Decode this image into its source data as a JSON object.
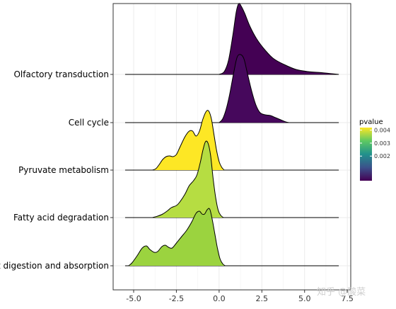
{
  "chart_data": {
    "type": "ridgeline",
    "x_ticks": [
      -5.0,
      -2.5,
      0.0,
      2.5,
      5.0,
      7.5
    ],
    "x_tick_labels": [
      "-5.0",
      "-2.5",
      "0.0",
      "2.5",
      "5.0",
      "7.5"
    ],
    "xlim": [
      -6.2,
      7.7
    ],
    "grid": true,
    "categories": [
      "Olfactory transduction",
      "Cell cycle",
      "Pyruvate metabolism",
      "Fatty acid degradation",
      "Fat digestion and absorption"
    ],
    "series": [
      {
        "name": "Olfactory transduction",
        "pvalue": 0.0001,
        "color": "#440154",
        "line_range": [
          -5.5,
          7.0
        ],
        "density": [
          [
            0.0,
            0
          ],
          [
            0.3,
            0.04
          ],
          [
            0.55,
            0.2
          ],
          [
            0.8,
            0.55
          ],
          [
            1.0,
            0.88
          ],
          [
            1.15,
            1.0
          ],
          [
            1.3,
            0.96
          ],
          [
            1.5,
            0.86
          ],
          [
            1.8,
            0.68
          ],
          [
            2.2,
            0.5
          ],
          [
            2.7,
            0.34
          ],
          [
            3.2,
            0.22
          ],
          [
            3.8,
            0.14
          ],
          [
            4.5,
            0.07
          ],
          [
            5.2,
            0.04
          ],
          [
            6.0,
            0.025
          ],
          [
            6.6,
            0.01
          ],
          [
            7.0,
            0
          ]
        ]
      },
      {
        "name": "Cell cycle",
        "pvalue": 0.0004,
        "color": "#46085c",
        "line_range": [
          -5.5,
          7.0
        ],
        "density": [
          [
            0.0,
            0
          ],
          [
            0.2,
            0.05
          ],
          [
            0.4,
            0.18
          ],
          [
            0.6,
            0.38
          ],
          [
            0.85,
            0.7
          ],
          [
            1.05,
            0.92
          ],
          [
            1.25,
            0.96
          ],
          [
            1.45,
            0.9
          ],
          [
            1.65,
            0.7
          ],
          [
            1.9,
            0.45
          ],
          [
            2.15,
            0.25
          ],
          [
            2.4,
            0.14
          ],
          [
            2.7,
            0.11
          ],
          [
            3.0,
            0.1
          ],
          [
            3.3,
            0.07
          ],
          [
            3.6,
            0.04
          ],
          [
            3.9,
            0.01
          ],
          [
            4.1,
            0
          ]
        ]
      },
      {
        "name": "Pyruvate metabolism",
        "pvalue": 0.0041,
        "color": "#fde725",
        "line_range": [
          -5.5,
          7.0
        ],
        "density": [
          [
            -3.9,
            0
          ],
          [
            -3.7,
            0.02
          ],
          [
            -3.5,
            0.08
          ],
          [
            -3.3,
            0.15
          ],
          [
            -3.1,
            0.19
          ],
          [
            -2.9,
            0.2
          ],
          [
            -2.7,
            0.19
          ],
          [
            -2.5,
            0.22
          ],
          [
            -2.3,
            0.32
          ],
          [
            -2.0,
            0.47
          ],
          [
            -1.75,
            0.55
          ],
          [
            -1.55,
            0.55
          ],
          [
            -1.35,
            0.48
          ],
          [
            -1.15,
            0.55
          ],
          [
            -0.95,
            0.72
          ],
          [
            -0.75,
            0.83
          ],
          [
            -0.6,
            0.83
          ],
          [
            -0.45,
            0.72
          ],
          [
            -0.3,
            0.5
          ],
          [
            -0.15,
            0.28
          ],
          [
            0.0,
            0.12
          ],
          [
            0.15,
            0.04
          ],
          [
            0.3,
            0
          ]
        ]
      },
      {
        "name": "Fatty acid degradation",
        "pvalue": 0.0034,
        "color": "#b6dd42",
        "line_range": [
          -5.5,
          7.0
        ],
        "density": [
          [
            -3.9,
            0
          ],
          [
            -3.6,
            0.02
          ],
          [
            -3.3,
            0.05
          ],
          [
            -3.0,
            0.1
          ],
          [
            -2.8,
            0.14
          ],
          [
            -2.5,
            0.17
          ],
          [
            -2.3,
            0.22
          ],
          [
            -2.0,
            0.33
          ],
          [
            -1.75,
            0.45
          ],
          [
            -1.5,
            0.52
          ],
          [
            -1.3,
            0.6
          ],
          [
            -1.1,
            0.78
          ],
          [
            -0.95,
            0.95
          ],
          [
            -0.8,
            1.07
          ],
          [
            -0.65,
            1.05
          ],
          [
            -0.5,
            0.88
          ],
          [
            -0.35,
            0.55
          ],
          [
            -0.2,
            0.28
          ],
          [
            -0.05,
            0.1
          ],
          [
            0.1,
            0.03
          ],
          [
            0.25,
            0
          ]
        ]
      },
      {
        "name": "Fat digestion and absorption",
        "pvalue": 0.0036,
        "color": "#9bd33f",
        "line_range": [
          -5.5,
          7.0
        ],
        "density": [
          [
            -5.3,
            0
          ],
          [
            -5.1,
            0.04
          ],
          [
            -4.8,
            0.14
          ],
          [
            -4.5,
            0.25
          ],
          [
            -4.25,
            0.28
          ],
          [
            -4.05,
            0.23
          ],
          [
            -3.8,
            0.19
          ],
          [
            -3.6,
            0.2
          ],
          [
            -3.35,
            0.27
          ],
          [
            -3.15,
            0.29
          ],
          [
            -2.95,
            0.26
          ],
          [
            -2.75,
            0.25
          ],
          [
            -2.5,
            0.32
          ],
          [
            -2.2,
            0.41
          ],
          [
            -1.9,
            0.5
          ],
          [
            -1.6,
            0.62
          ],
          [
            -1.35,
            0.74
          ],
          [
            -1.15,
            0.77
          ],
          [
            -1.0,
            0.73
          ],
          [
            -0.85,
            0.73
          ],
          [
            -0.7,
            0.79
          ],
          [
            -0.55,
            0.8
          ],
          [
            -0.4,
            0.65
          ],
          [
            -0.25,
            0.45
          ],
          [
            -0.1,
            0.25
          ],
          [
            0.05,
            0.1
          ],
          [
            0.2,
            0.03
          ],
          [
            0.35,
            0
          ]
        ]
      }
    ],
    "legend": {
      "title": "pvalue",
      "position": "right",
      "ticks": [
        0.004,
        0.003,
        0.002
      ],
      "tick_labels": [
        "0.004",
        "0.003",
        "0.002"
      ],
      "range": [
        0.0001,
        0.0042
      ],
      "colors": [
        "#440154",
        "#3b528b",
        "#21918c",
        "#5ec962",
        "#fde725"
      ]
    }
  },
  "watermark": "知乎 @酸菜"
}
